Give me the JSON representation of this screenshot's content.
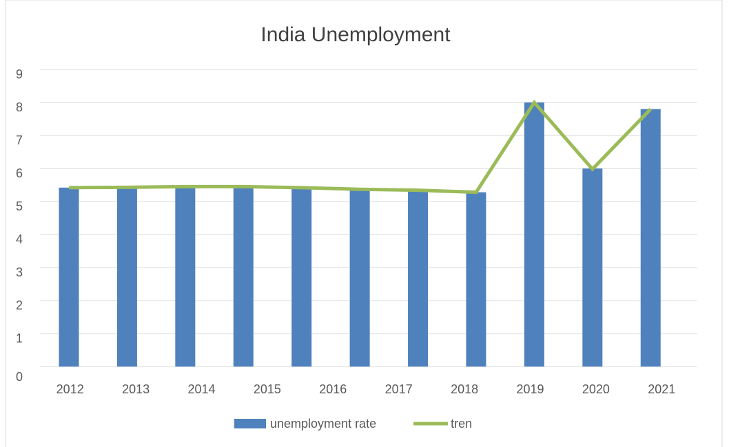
{
  "chart_data": {
    "type": "bar",
    "title": "India Unemployment",
    "categories": [
      "2012",
      "2013",
      "2014",
      "2015",
      "2016",
      "2017",
      "2018",
      "2019",
      "2020",
      "2021",
      null
    ],
    "series": [
      {
        "name": "unemployment rate",
        "type": "bar",
        "color": "#4f81bd",
        "values": [
          5.42,
          5.42,
          5.44,
          5.44,
          5.42,
          5.36,
          5.33,
          5.28,
          8.0,
          6.0,
          7.8
        ]
      },
      {
        "name": "tren",
        "type": "line",
        "color": "#9bbb59",
        "values": [
          5.42,
          5.43,
          5.45,
          5.45,
          5.42,
          5.37,
          5.34,
          5.28,
          8.0,
          5.98,
          7.8
        ]
      }
    ],
    "ylim": [
      0,
      9
    ],
    "yticks": [
      0,
      1,
      2,
      3,
      4,
      5,
      6,
      7,
      8,
      9
    ],
    "grid": true,
    "legend": "bottom"
  }
}
